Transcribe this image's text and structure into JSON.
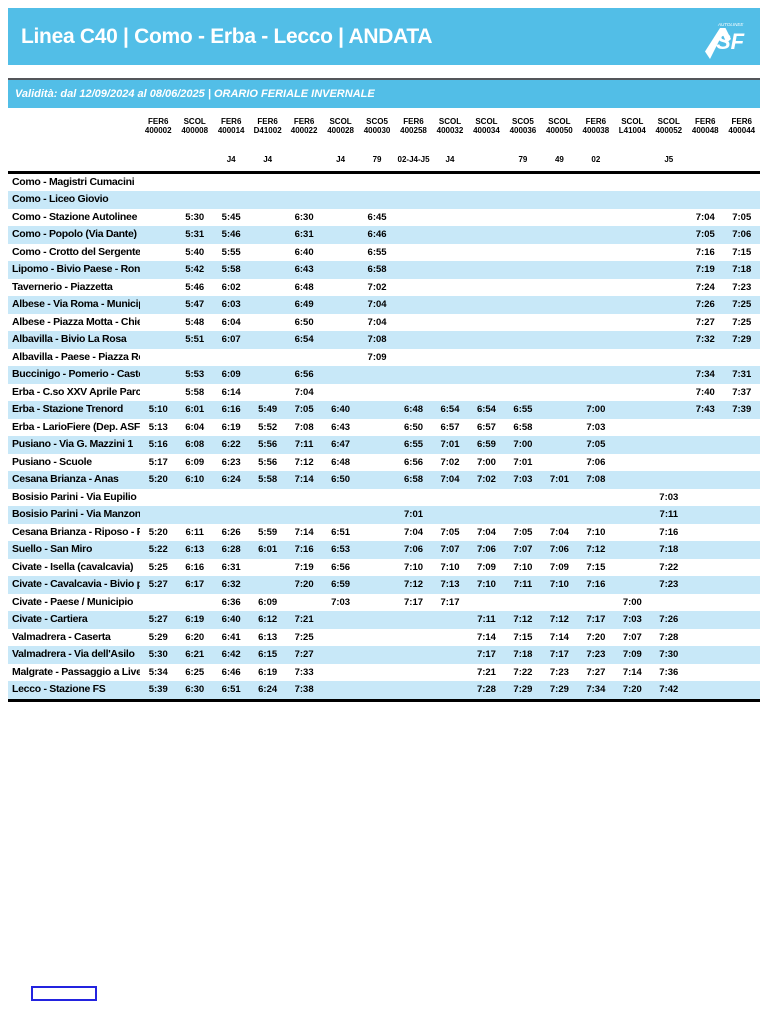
{
  "colors": {
    "brand_blue": "#52BEE7",
    "row_alt_blue": "#C8E8F8",
    "box_border_blue": "#2323DF"
  },
  "header": {
    "title": "Linea C40 | Como - Erba - Lecco | ANDATA",
    "logo": {
      "text": "SF",
      "tiny_text": "AUTOLINEE"
    }
  },
  "validity": {
    "text": "Validità: dal 12/09/2024 al 08/06/2025 | ORARIO FERIALE INVERNALE"
  },
  "timetable": {
    "columns": [
      {
        "type": "FER6",
        "code": "400002",
        "note": ""
      },
      {
        "type": "SCOL",
        "code": "400008",
        "note": ""
      },
      {
        "type": "FER6",
        "code": "400014",
        "note": "J4"
      },
      {
        "type": "FER6",
        "code": "D41002",
        "note": "J4"
      },
      {
        "type": "FER6",
        "code": "400022",
        "note": ""
      },
      {
        "type": "SCOL",
        "code": "400028",
        "note": "J4"
      },
      {
        "type": "SCO5",
        "code": "400030",
        "note": "79"
      },
      {
        "type": "FER6",
        "code": "400258",
        "note": "02-J4-J5"
      },
      {
        "type": "SCOL",
        "code": "400032",
        "note": "J4"
      },
      {
        "type": "SCOL",
        "code": "400034",
        "note": ""
      },
      {
        "type": "SCO5",
        "code": "400036",
        "note": "79"
      },
      {
        "type": "SCOL",
        "code": "400050",
        "note": "49"
      },
      {
        "type": "FER6",
        "code": "400038",
        "note": "02"
      },
      {
        "type": "SCOL",
        "code": "L41004",
        "note": ""
      },
      {
        "type": "SCOL",
        "code": "400052",
        "note": "J5"
      },
      {
        "type": "FER6",
        "code": "400048",
        "note": ""
      },
      {
        "type": "FER6",
        "code": "400044",
        "note": ""
      }
    ],
    "rows": [
      {
        "stop": "Como - Magistri Cumacini",
        "times": [
          "",
          "",
          "",
          "",
          "",
          "",
          "",
          "",
          "",
          "",
          "",
          "",
          "",
          "",
          "",
          "",
          ""
        ]
      },
      {
        "stop": "Como - Liceo Giovio",
        "times": [
          "",
          "",
          "",
          "",
          "",
          "",
          "",
          "",
          "",
          "",
          "",
          "",
          "",
          "",
          "",
          "",
          ""
        ]
      },
      {
        "stop": "Como - Stazione Autolinee",
        "times": [
          "",
          "5:30",
          "5:45",
          "",
          "6:30",
          "",
          "6:45",
          "",
          "",
          "",
          "",
          "",
          "",
          "",
          "",
          "7:04",
          "7:05"
        ]
      },
      {
        "stop": "Como - Popolo (Via Dante)",
        "times": [
          "",
          "5:31",
          "5:46",
          "",
          "6:31",
          "",
          "6:46",
          "",
          "",
          "",
          "",
          "",
          "",
          "",
          "",
          "7:05",
          "7:06"
        ]
      },
      {
        "stop": "Como - Crotto del Sergente (Lora)",
        "times": [
          "",
          "5:40",
          "5:55",
          "",
          "6:40",
          "",
          "6:55",
          "",
          "",
          "",
          "",
          "",
          "",
          "",
          "",
          "7:16",
          "7:15"
        ]
      },
      {
        "stop": "Lipomo - Bivio Paese - Rondò",
        "times": [
          "",
          "5:42",
          "5:58",
          "",
          "6:43",
          "",
          "6:58",
          "",
          "",
          "",
          "",
          "",
          "",
          "",
          "",
          "7:19",
          "7:18"
        ]
      },
      {
        "stop": "Tavernerio - Piazzetta",
        "times": [
          "",
          "5:46",
          "6:02",
          "",
          "6:48",
          "",
          "7:02",
          "",
          "",
          "",
          "",
          "",
          "",
          "",
          "",
          "7:24",
          "7:23"
        ]
      },
      {
        "stop": "Albese - Via Roma - Municipio",
        "times": [
          "",
          "5:47",
          "6:03",
          "",
          "6:49",
          "",
          "7:04",
          "",
          "",
          "",
          "",
          "",
          "",
          "",
          "",
          "7:26",
          "7:25"
        ]
      },
      {
        "stop": "Albese - Piazza Motta - Chiesa",
        "times": [
          "",
          "5:48",
          "6:04",
          "",
          "6:50",
          "",
          "7:04",
          "",
          "",
          "",
          "",
          "",
          "",
          "",
          "",
          "7:27",
          "7:25"
        ]
      },
      {
        "stop": "Albavilla - Bivio La Rosa",
        "times": [
          "",
          "5:51",
          "6:07",
          "",
          "6:54",
          "",
          "7:08",
          "",
          "",
          "",
          "",
          "",
          "",
          "",
          "",
          "7:32",
          "7:29"
        ]
      },
      {
        "stop": "Albavilla - Paese - Piazza Roma",
        "times": [
          "",
          "",
          "",
          "",
          "",
          "",
          "7:09",
          "",
          "",
          "",
          "",
          "",
          "",
          "",
          "",
          "",
          ""
        ]
      },
      {
        "stop": "Buccinigo - Pomerio - Castello",
        "times": [
          "",
          "5:53",
          "6:09",
          "",
          "6:56",
          "",
          "",
          "",
          "",
          "",
          "",
          "",
          "",
          "",
          "",
          "7:34",
          "7:31"
        ]
      },
      {
        "stop": "Erba - C.so XXV Aprile Parcheggio ...",
        "times": [
          "",
          "5:58",
          "6:14",
          "",
          "7:04",
          "",
          "",
          "",
          "",
          "",
          "",
          "",
          "",
          "",
          "",
          "7:40",
          "7:37"
        ]
      },
      {
        "stop": "Erba - Stazione Trenord",
        "times": [
          "5:10",
          "6:01",
          "6:16",
          "5:49",
          "7:05",
          "6:40",
          "",
          "6:48",
          "6:54",
          "6:54",
          "6:55",
          "",
          "7:00",
          "",
          "",
          "7:43",
          "7:39"
        ]
      },
      {
        "stop": "Erba - LarioFiere (Dep. ASF)",
        "times": [
          "5:13",
          "6:04",
          "6:19",
          "5:52",
          "7:08",
          "6:43",
          "",
          "6:50",
          "6:57",
          "6:57",
          "6:58",
          "",
          "7:03",
          "",
          "",
          "",
          ""
        ]
      },
      {
        "stop": "Pusiano - Via G. Mazzini 1",
        "times": [
          "5:16",
          "6:08",
          "6:22",
          "5:56",
          "7:11",
          "6:47",
          "",
          "6:55",
          "7:01",
          "6:59",
          "7:00",
          "",
          "7:05",
          "",
          "",
          "",
          ""
        ]
      },
      {
        "stop": "Pusiano - Scuole",
        "times": [
          "5:17",
          "6:09",
          "6:23",
          "5:56",
          "7:12",
          "6:48",
          "",
          "6:56",
          "7:02",
          "7:00",
          "7:01",
          "",
          "7:06",
          "",
          "",
          "",
          ""
        ]
      },
      {
        "stop": "Cesana Brianza - Anas",
        "times": [
          "5:20",
          "6:10",
          "6:24",
          "5:58",
          "7:14",
          "6:50",
          "",
          "6:58",
          "7:04",
          "7:02",
          "7:03",
          "7:01",
          "7:08",
          "",
          "",
          "",
          ""
        ]
      },
      {
        "stop": "Bosisio Parini - Via Eupilio",
        "times": [
          "",
          "",
          "",
          "",
          "",
          "",
          "",
          "",
          "",
          "",
          "",
          "",
          "",
          "",
          "7:03",
          "",
          ""
        ]
      },
      {
        "stop": "Bosisio Parini - Via Manzoni",
        "times": [
          "",
          "",
          "",
          "",
          "",
          "",
          "",
          "7:01",
          "",
          "",
          "",
          "",
          "",
          "",
          "7:11",
          "",
          ""
        ]
      },
      {
        "stop": "Cesana Brianza - Riposo - Pensilin...",
        "times": [
          "5:20",
          "6:11",
          "6:26",
          "5:59",
          "7:14",
          "6:51",
          "",
          "7:04",
          "7:05",
          "7:04",
          "7:05",
          "7:04",
          "7:10",
          "",
          "7:16",
          "",
          ""
        ]
      },
      {
        "stop": "Suello - San Miro",
        "times": [
          "5:22",
          "6:13",
          "6:28",
          "6:01",
          "7:16",
          "6:53",
          "",
          "7:06",
          "7:07",
          "7:06",
          "7:07",
          "7:06",
          "7:12",
          "",
          "7:18",
          "",
          ""
        ]
      },
      {
        "stop": "Civate - Isella (cavalcavia)",
        "times": [
          "5:25",
          "6:16",
          "6:31",
          "",
          "7:19",
          "6:56",
          "",
          "7:10",
          "7:10",
          "7:09",
          "7:10",
          "7:09",
          "7:15",
          "",
          "7:22",
          "",
          ""
        ]
      },
      {
        "stop": "Civate - Cavalcavia - Bivio per Og...",
        "times": [
          "5:27",
          "6:17",
          "6:32",
          "",
          "7:20",
          "6:59",
          "",
          "7:12",
          "7:13",
          "7:10",
          "7:11",
          "7:10",
          "7:16",
          "",
          "7:23",
          "",
          ""
        ]
      },
      {
        "stop": "Civate - Paese / Municipio",
        "times": [
          "",
          "",
          "6:36",
          "6:09",
          "",
          "7:03",
          "",
          "7:17",
          "7:17",
          "",
          "",
          "",
          "",
          "7:00",
          "",
          "",
          ""
        ]
      },
      {
        "stop": "Civate - Cartiera",
        "times": [
          "5:27",
          "6:19",
          "6:40",
          "6:12",
          "7:21",
          "",
          "",
          "",
          "",
          "7:11",
          "7:12",
          "7:12",
          "7:17",
          "7:03",
          "7:26",
          "",
          ""
        ]
      },
      {
        "stop": "Valmadrera - Caserta",
        "times": [
          "5:29",
          "6:20",
          "6:41",
          "6:13",
          "7:25",
          "",
          "",
          "",
          "",
          "7:14",
          "7:15",
          "7:14",
          "7:20",
          "7:07",
          "7:28",
          "",
          ""
        ]
      },
      {
        "stop": "Valmadrera - Via dell'Asilo",
        "times": [
          "5:30",
          "6:21",
          "6:42",
          "6:15",
          "7:27",
          "",
          "",
          "",
          "",
          "7:17",
          "7:18",
          "7:17",
          "7:23",
          "7:09",
          "7:30",
          "",
          ""
        ]
      },
      {
        "stop": "Malgrate - Passaggio a Livello",
        "times": [
          "5:34",
          "6:25",
          "6:46",
          "6:19",
          "7:33",
          "",
          "",
          "",
          "",
          "7:21",
          "7:22",
          "7:23",
          "7:27",
          "7:14",
          "7:36",
          "",
          ""
        ]
      },
      {
        "stop": "Lecco - Stazione FS",
        "times": [
          "5:39",
          "6:30",
          "6:51",
          "6:24",
          "7:38",
          "",
          "",
          "",
          "",
          "7:28",
          "7:29",
          "7:29",
          "7:34",
          "7:20",
          "7:42",
          "",
          ""
        ]
      }
    ]
  }
}
